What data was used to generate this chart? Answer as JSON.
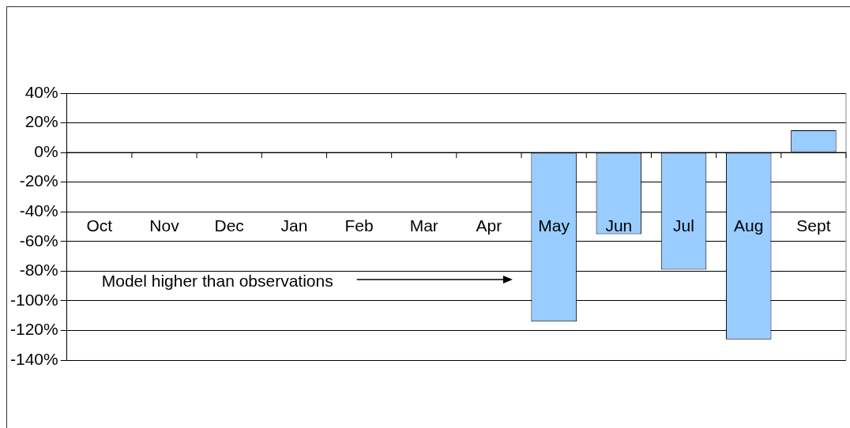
{
  "chart_data": {
    "type": "bar",
    "categories": [
      "Oct",
      "Nov",
      "Dec",
      "Jan",
      "Feb",
      "Mar",
      "Apr",
      "May",
      "Jun",
      "Jul",
      "Aug",
      "Sept"
    ],
    "values": [
      null,
      null,
      null,
      null,
      null,
      null,
      null,
      -114,
      -55,
      -79,
      -126,
      15
    ],
    "color": "#99ccff",
    "ylim": [
      -140,
      40
    ],
    "yticks": [
      {
        "value": 40,
        "label": "40%"
      },
      {
        "value": 20,
        "label": "20%"
      },
      {
        "value": 0,
        "label": "0%"
      },
      {
        "value": -20,
        "label": "-20%"
      },
      {
        "value": -40,
        "label": "-40%"
      },
      {
        "value": -60,
        "label": "-60%"
      },
      {
        "value": -80,
        "label": "-80%"
      },
      {
        "value": -100,
        "label": "-100%"
      },
      {
        "value": -120,
        "label": "-120%"
      },
      {
        "value": -140,
        "label": "-140%"
      }
    ],
    "grid": "y",
    "annotations": [
      "Model higher than observations"
    ]
  }
}
